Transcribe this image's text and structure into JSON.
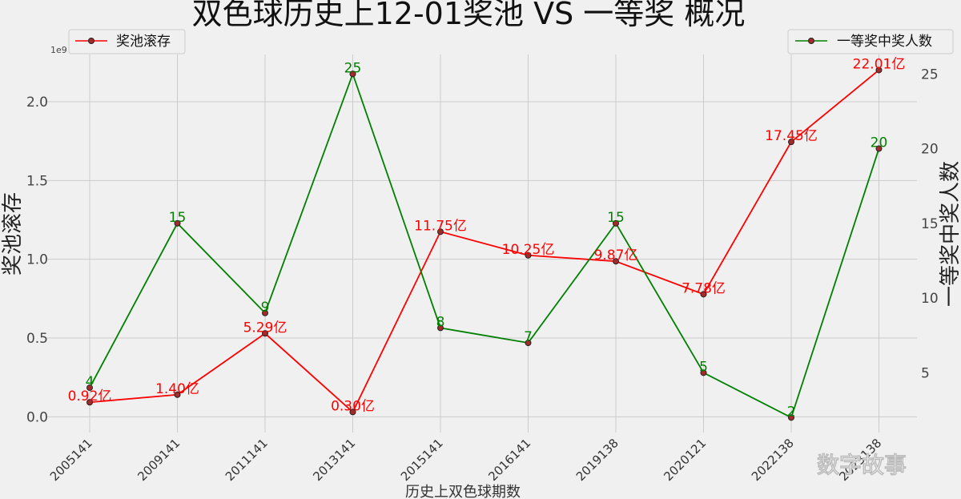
{
  "chart_data": {
    "type": "line",
    "title": "双色球历史上12-01奖池 VS 一等奖 概况",
    "xlabel": "历史上双色球期数",
    "ylabel_left": "奖池滚存",
    "ylabel_right": "一等奖中奖人数",
    "left_axis_multiplier": "1e9",
    "categories": [
      "2005141",
      "2009141",
      "2011141",
      "2013141",
      "2015141",
      "2016141",
      "2019138",
      "2020121",
      "2022138",
      "2023138"
    ],
    "left_ylim": [
      -0.1,
      2.3
    ],
    "left_yticks": [
      "0.0",
      "0.5",
      "1.0",
      "1.5",
      "2.0"
    ],
    "right_ylim": [
      1.0,
      26.3
    ],
    "right_yticks": [
      "5",
      "10",
      "15",
      "20",
      "25"
    ],
    "grid": true,
    "series": [
      {
        "name": "奖池滚存",
        "axis": "left",
        "color": "#ff0000",
        "values": [
          0.092,
          0.14,
          0.529,
          0.03,
          1.175,
          1.025,
          0.987,
          0.778,
          1.745,
          2.201
        ],
        "labels": [
          "0.92亿",
          "1.40亿",
          "5.29亿",
          "0.30亿",
          "11.75亿",
          "10.25亿",
          "9.87亿",
          "7.78亿",
          "17.45亿",
          "22.01亿"
        ]
      },
      {
        "name": "一等奖中奖人数",
        "axis": "right",
        "color": "#008000",
        "values": [
          4,
          15,
          9,
          25,
          8,
          7,
          15,
          5,
          2,
          20
        ],
        "labels": [
          "4",
          "15",
          "9",
          "25",
          "8",
          "7",
          "15",
          "5",
          "2",
          "20"
        ]
      }
    ],
    "legend_left_position": "top-left",
    "legend_right_position": "top-right"
  },
  "watermark": "数字故事"
}
